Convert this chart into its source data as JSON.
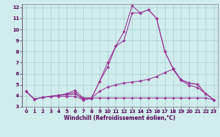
{
  "x": [
    0,
    1,
    2,
    3,
    4,
    5,
    6,
    7,
    8,
    9,
    10,
    11,
    12,
    13,
    14,
    15,
    16,
    17,
    18,
    19,
    20,
    21,
    22,
    23
  ],
  "line1": [
    4.4,
    3.7,
    3.85,
    3.95,
    3.95,
    3.95,
    3.95,
    3.65,
    3.75,
    5.3,
    6.6,
    8.5,
    9.8,
    12.15,
    11.5,
    11.8,
    11.0,
    8.0,
    6.5,
    5.45,
    5.15,
    5.05,
    4.2,
    3.65
  ],
  "line2": [
    4.4,
    3.7,
    3.85,
    3.95,
    4.05,
    4.15,
    4.3,
    3.65,
    3.75,
    5.3,
    7.0,
    8.5,
    9.0,
    11.5,
    11.5,
    11.8,
    11.0,
    8.0,
    6.5,
    5.45,
    5.15,
    5.05,
    4.2,
    3.65
  ],
  "line3": [
    4.4,
    3.7,
    3.85,
    3.95,
    4.05,
    4.2,
    4.5,
    3.8,
    3.8,
    4.4,
    4.8,
    5.0,
    5.15,
    5.25,
    5.35,
    5.5,
    5.75,
    6.1,
    6.4,
    5.4,
    4.95,
    4.75,
    4.2,
    3.65
  ],
  "line4": [
    4.4,
    3.7,
    3.85,
    3.95,
    4.05,
    4.1,
    4.15,
    3.8,
    3.8,
    3.8,
    3.8,
    3.8,
    3.8,
    3.8,
    3.8,
    3.8,
    3.8,
    3.8,
    3.8,
    3.8,
    3.8,
    3.8,
    3.8,
    3.65
  ],
  "color": "#993399",
  "bg_color": "#d0ecec",
  "grid_color": "#a8cccc",
  "xlabel": "Windchill (Refroidissement éolien,°C)",
  "ylim": [
    3.0,
    12.3
  ],
  "xlim": [
    -0.5,
    23.5
  ],
  "yticks": [
    3,
    4,
    5,
    6,
    7,
    8,
    9,
    10,
    11,
    12
  ],
  "xticks": [
    0,
    1,
    2,
    3,
    4,
    5,
    6,
    7,
    8,
    9,
    10,
    11,
    12,
    13,
    14,
    15,
    16,
    17,
    18,
    19,
    20,
    21,
    22,
    23
  ],
  "markersize": 2.0,
  "linewidth": 0.8,
  "xlabel_fontsize": 5.5,
  "tick_fontsize": 5.2
}
